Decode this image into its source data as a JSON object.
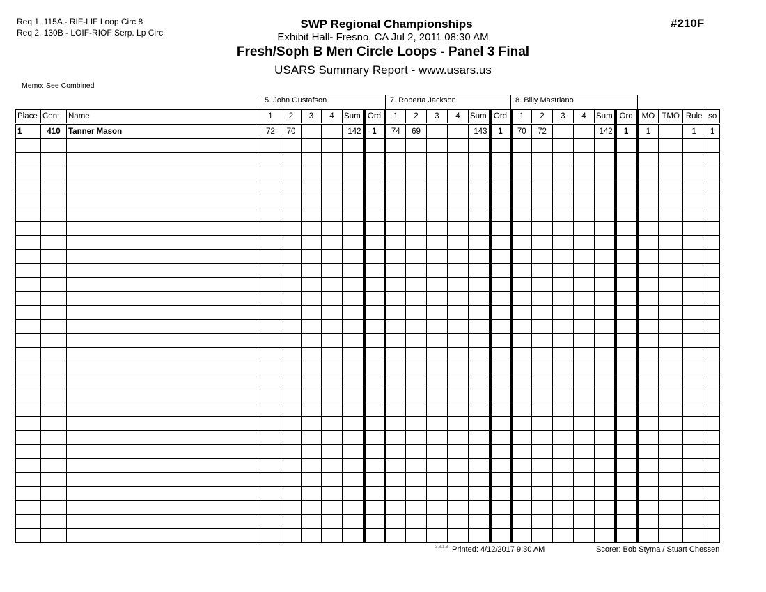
{
  "header": {
    "requirements": [
      "Req  1.  115A - RIF-LIF Loop Circ 8",
      "Req  2.  130B - LOIF-RIOF Serp. Lp Circ"
    ],
    "title": "SWP Regional Championships",
    "venue": "Exhibit Hall-  Fresno, CA  Jul 2, 2011  08:30 AM",
    "event": "Fresh/Soph B Men Circle Loops - Panel 3 Final",
    "report": "USARS Summary Report - www.usars.us",
    "event_number": "#210F",
    "memo": "Memo: See Combined"
  },
  "judges": [
    "5.  John Gustafson",
    "7.  Roberta Jackson",
    "8.  Billy Mastriano"
  ],
  "columns": {
    "place": "Place",
    "cont": "Cont",
    "name": "Name",
    "judge_cols": [
      "1",
      "2",
      "3",
      "4",
      "Sum",
      "Ord"
    ],
    "tail": [
      "MO",
      "TMO",
      "Rule",
      "so"
    ]
  },
  "rows": [
    {
      "place": "1",
      "cont": "410",
      "name": "Tanner Mason",
      "judges": [
        [
          "72",
          "70",
          "",
          "",
          "142",
          "1"
        ],
        [
          "74",
          "69",
          "",
          "",
          "143",
          "1"
        ],
        [
          "70",
          "72",
          "",
          "",
          "142",
          "1"
        ]
      ],
      "tail": [
        "1",
        "",
        "1",
        "1"
      ]
    }
  ],
  "total_rows": 30,
  "footer": {
    "version": "3.8.1.8",
    "printed": "Printed:  4/12/2017  9:30 AM",
    "scorer": "Scorer:   Bob Styma / Stuart Chessen"
  }
}
